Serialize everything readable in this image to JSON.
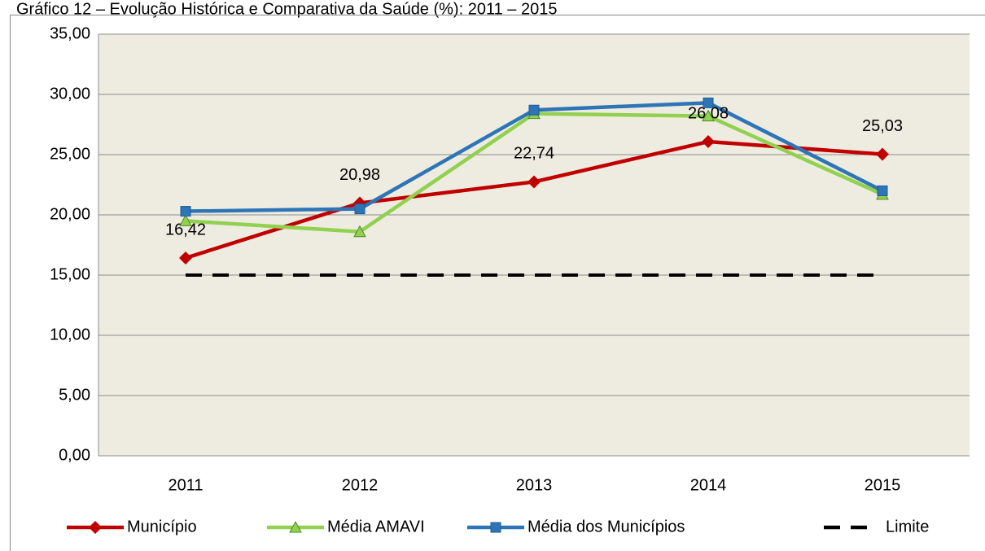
{
  "chart_data": {
    "type": "line",
    "title": "Gráfico 12 – Evolução Histórica e Comparativa da Saúde (%): 2011 – 2015",
    "categories": [
      "2011",
      "2012",
      "2013",
      "2014",
      "2015"
    ],
    "series": [
      {
        "name": "Município",
        "color": "#c00000",
        "marker": "diamond",
        "values": [
          16.42,
          20.98,
          22.74,
          26.08,
          25.03
        ],
        "value_labels": [
          "16,42",
          "20,98",
          "22,74",
          "26,08",
          "25,03"
        ]
      },
      {
        "name": "Média AMAVI",
        "color": "#92d050",
        "marker": "triangle",
        "values": [
          19.5,
          18.6,
          28.4,
          28.2,
          21.7
        ]
      },
      {
        "name": "Média dos Municípios",
        "color": "#2e75b6",
        "marker": "square",
        "values": [
          20.3,
          20.5,
          28.7,
          29.3,
          22.0
        ]
      },
      {
        "name": "Limite",
        "color": "#000000",
        "dashed": true,
        "values": [
          15,
          15,
          15,
          15,
          15
        ]
      }
    ],
    "ylim": [
      0,
      35
    ],
    "yticks": [
      {
        "value": 0,
        "label": "0,00"
      },
      {
        "value": 5,
        "label": "5,00"
      },
      {
        "value": 10,
        "label": "10,00"
      },
      {
        "value": 15,
        "label": "15,00"
      },
      {
        "value": 20,
        "label": "20,00"
      },
      {
        "value": 25,
        "label": "25,00"
      },
      {
        "value": 30,
        "label": "30,00"
      },
      {
        "value": 35,
        "label": "35,00"
      }
    ],
    "grid": true,
    "legend": "bottom",
    "background": "#eeece1"
  }
}
